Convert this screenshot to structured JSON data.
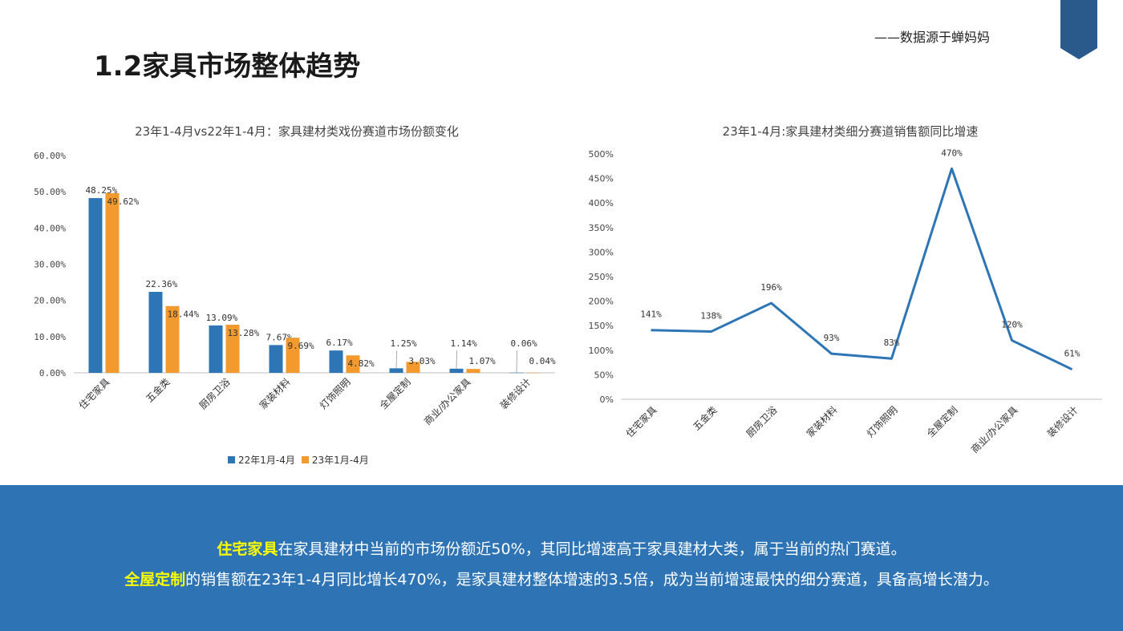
{
  "source_note": "——数据源于蝉妈妈",
  "page_title": "1.2家具市场整体趋势",
  "colors": {
    "series_22": "#2e75b6",
    "series_23": "#f29a2e",
    "line": "#2e75b6",
    "band": "#2e74b5",
    "highlight": "#ffff00",
    "ribbon": "#2a5a8c"
  },
  "summary": {
    "line1_highlight": "住宅家具",
    "line1_rest": "在家具建材中当前的市场份额近50%，其同比增速高于家具建材大类，属于当前的热门赛道。",
    "line2_highlight": "全屋定制",
    "line2_rest": "的销售额在23年1-4月同比增长470%，是家具建材整体增速的3.5倍，成为当前增速最快的细分赛道，具备高增长潜力。"
  },
  "chart_data": [
    {
      "type": "bar",
      "title": "23年1-4月vs22年1-4月：家具建材类戏份赛道市场份额变化",
      "categories": [
        "住宅家具",
        "五金类",
        "厨房卫浴",
        "家装材料",
        "灯饰照明",
        "全屋定制",
        "商业/办公家具",
        "装修设计"
      ],
      "series": [
        {
          "name": "22年1月-4月",
          "values": [
            48.25,
            22.36,
            13.09,
            7.67,
            6.17,
            1.25,
            1.14,
            0.06
          ],
          "labels": [
            "48.25%",
            "22.36%",
            "13.09%",
            "7.67%",
            "6.17%",
            "1.25%",
            "1.14%",
            "0.06%"
          ]
        },
        {
          "name": "23年1月-4月",
          "values": [
            49.62,
            18.44,
            13.28,
            9.69,
            4.82,
            3.03,
            1.07,
            0.04
          ],
          "labels": [
            "49.62%",
            "18.44%",
            "13.28%",
            "9.69%",
            "4.82%",
            "3.03%",
            "1.07%",
            "0.04%"
          ]
        }
      ],
      "ylim": [
        0,
        60
      ],
      "yticks": [
        "0.00%",
        "10.00%",
        "20.00%",
        "30.00%",
        "40.00%",
        "50.00%",
        "60.00%"
      ],
      "legend": "bottom",
      "grid": false
    },
    {
      "type": "line",
      "title": "23年1-4月:家具建材类细分赛道销售额同比增速",
      "categories": [
        "住宅家具",
        "五金类",
        "厨房卫浴",
        "家装材料",
        "灯饰照明",
        "全屋定制",
        "商业/办公家具",
        "装修设计"
      ],
      "series": [
        {
          "values": [
            141,
            138,
            196,
            93,
            83,
            470,
            120,
            61
          ],
          "labels": [
            "141%",
            "138%",
            "196%",
            "93%",
            "83%",
            "470%",
            "120%",
            "61%"
          ]
        }
      ],
      "ylim": [
        0,
        500
      ],
      "yticks": [
        "0%",
        "50%",
        "100%",
        "150%",
        "200%",
        "250%",
        "300%",
        "350%",
        "400%",
        "450%",
        "500%"
      ],
      "grid": false
    }
  ]
}
